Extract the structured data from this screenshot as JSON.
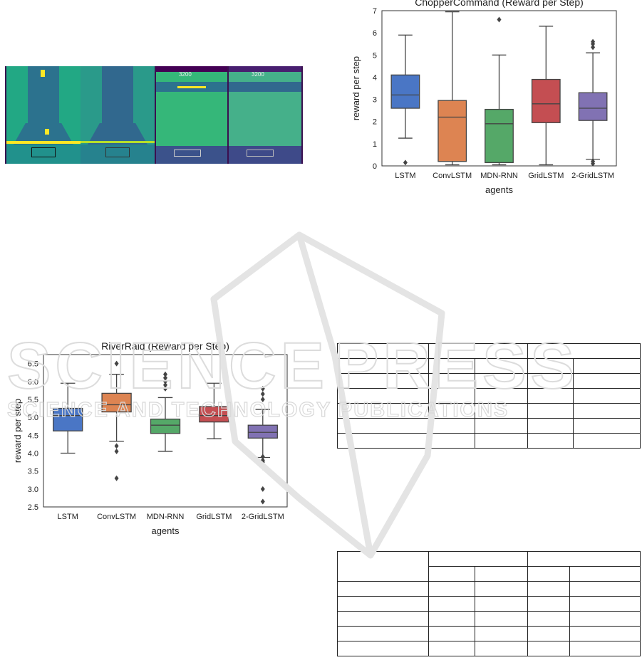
{
  "figures": {
    "atari_frames": {
      "panels": [
        "riverraid-original",
        "riverraid-noisy",
        "choppercommand-original",
        "choppercommand-noisy"
      ],
      "hud_score_left": "3200",
      "hud_score_right": "3200"
    }
  },
  "watermark": {
    "line1": "SCIENCE",
    "line1b": "PRESS",
    "line2": "SCIENCE AND TECHNOLOGY PUBLICATIONS"
  },
  "colors": {
    "LSTM": "#4a76c5",
    "ConvLSTM": "#dd8452",
    "MDN-RNN": "#55a868",
    "GridLSTM": "#c44e52",
    "2-GridLSTM": "#8172b3"
  },
  "chart_data": [
    {
      "type": "boxplot",
      "title": "ChopperCommand (Reward per Step)",
      "xlabel": "agents",
      "ylabel": "reward per step",
      "ylim": [
        0,
        7
      ],
      "yticks": [
        "0",
        "1",
        "2",
        "3",
        "4",
        "5",
        "6",
        "7"
      ],
      "categories": [
        "LSTM",
        "ConvLSTM",
        "MDN-RNN",
        "GridLSTM",
        "2-GridLSTM"
      ],
      "boxes": [
        {
          "name": "LSTM",
          "whislo": 1.25,
          "q1": 2.6,
          "med": 3.2,
          "q3": 4.1,
          "whishi": 5.9,
          "fliers": [
            0.15
          ]
        },
        {
          "name": "ConvLSTM",
          "whislo": 0.05,
          "q1": 0.2,
          "med": 2.2,
          "q3": 2.95,
          "whishi": 6.95,
          "fliers": []
        },
        {
          "name": "MDN-RNN",
          "whislo": 0.05,
          "q1": 0.15,
          "med": 1.9,
          "q3": 2.55,
          "whishi": 5.0,
          "fliers": [
            6.6
          ]
        },
        {
          "name": "GridLSTM",
          "whislo": 0.05,
          "q1": 1.95,
          "med": 2.8,
          "q3": 3.9,
          "whishi": 6.3,
          "fliers": []
        },
        {
          "name": "2-GridLSTM",
          "whislo": 0.3,
          "q1": 2.05,
          "med": 2.6,
          "q3": 3.3,
          "whishi": 5.1,
          "fliers": [
            0.1,
            0.2,
            5.35,
            5.5,
            5.6
          ]
        }
      ]
    },
    {
      "type": "boxplot",
      "title": "RiverRaid (Reward per Step)",
      "xlabel": "agents",
      "ylabel": "reward per step",
      "ylim": [
        2.5,
        6.75
      ],
      "yticks": [
        "2.5",
        "3.0",
        "3.5",
        "4.0",
        "4.5",
        "5.0",
        "5.5",
        "6.0",
        "6.5"
      ],
      "categories": [
        "LSTM",
        "ConvLSTM",
        "MDN-RNN",
        "GridLSTM",
        "2-GridLSTM"
      ],
      "boxes": [
        {
          "name": "LSTM",
          "whislo": 4.0,
          "q1": 4.62,
          "med": 5.05,
          "q3": 5.25,
          "whishi": 5.95,
          "fliers": []
        },
        {
          "name": "ConvLSTM",
          "whislo": 4.33,
          "q1": 5.15,
          "med": 5.35,
          "q3": 5.67,
          "whishi": 6.2,
          "fliers": [
            3.3,
            4.05,
            4.2,
            6.5
          ]
        },
        {
          "name": "MDN-RNN",
          "whislo": 4.05,
          "q1": 4.55,
          "med": 4.78,
          "q3": 4.95,
          "whishi": 5.55,
          "fliers": [
            5.8,
            5.9,
            6.0,
            6.1,
            6.2
          ]
        },
        {
          "name": "GridLSTM",
          "whislo": 4.4,
          "q1": 4.87,
          "med": 5.05,
          "q3": 5.3,
          "whishi": 5.95,
          "fliers": []
        },
        {
          "name": "2-GridLSTM",
          "whislo": 3.88,
          "q1": 4.42,
          "med": 4.58,
          "q3": 4.78,
          "whishi": 5.22,
          "fliers": [
            2.65,
            3.0,
            3.6,
            3.7,
            3.75,
            3.8,
            3.9,
            5.5,
            5.65,
            5.8
          ]
        }
      ]
    }
  ],
  "tables": [
    {
      "rows": 7,
      "cols": [
        130,
        65,
        75,
        65,
        95
      ],
      "header_merge": true
    },
    {
      "rows": 7,
      "cols": [
        130,
        65,
        75,
        60,
        100
      ],
      "header_merge": true,
      "double_header": true
    }
  ]
}
